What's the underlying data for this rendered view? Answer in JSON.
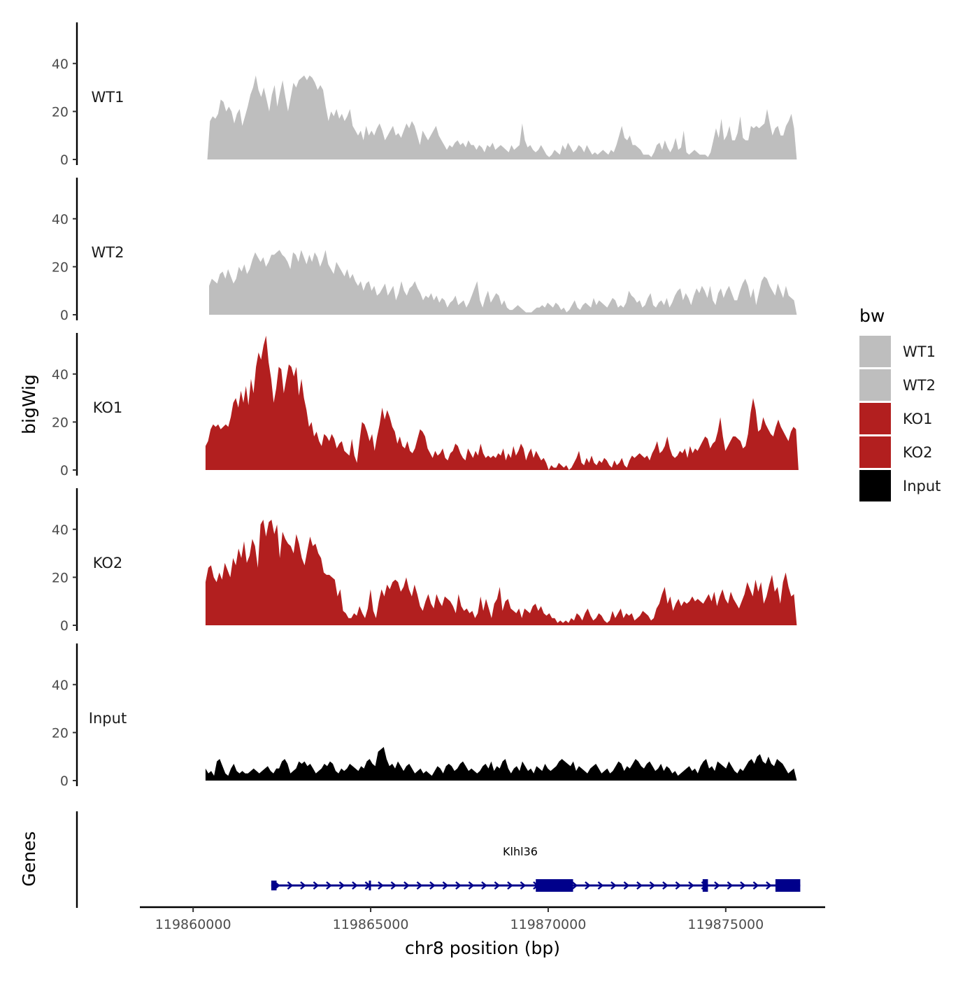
{
  "chart_data": {
    "type": "area",
    "title": "",
    "xlabel": "chr8 position (bp)",
    "ylabel": "bigWig",
    "genes_label": "Genes",
    "xlim": [
      119858500,
      119877800
    ],
    "x_ticks": [
      119860000,
      119865000,
      119870000,
      119875000
    ],
    "x_tick_labels": [
      "119860000",
      "119865000",
      "119870000",
      "119875000"
    ],
    "ylim": [
      0,
      58
    ],
    "y_ticks": [
      0,
      20,
      40
    ],
    "y_tick_labels": [
      "0",
      "20",
      "40"
    ],
    "colors": {
      "WT": "#bebebe",
      "KO": "#b21f1f",
      "Input": "#000000",
      "gene": "#00008b",
      "axis": "#000000"
    },
    "legend": {
      "title": "bw",
      "position": "right",
      "entries": [
        {
          "label": "WT1",
          "color": "#bebebe"
        },
        {
          "label": "WT2",
          "color": "#bebebe"
        },
        {
          "label": "KO1",
          "color": "#b21f1f"
        },
        {
          "label": "KO2",
          "color": "#b21f1f"
        },
        {
          "label": "Input",
          "color": "#000000"
        }
      ]
    },
    "series": [
      {
        "name": "WT1",
        "color": "#bebebe",
        "x_start": 119860400,
        "x_end": 119877000,
        "values": [
          0,
          16,
          18,
          17,
          19,
          25,
          24,
          20,
          22,
          20,
          15,
          19,
          21,
          14,
          18,
          22,
          27,
          30,
          35,
          29,
          26,
          30,
          25,
          20,
          27,
          31,
          22,
          28,
          33,
          26,
          20,
          26,
          32,
          30,
          33,
          34,
          35,
          33,
          35,
          34,
          32,
          29,
          31,
          29,
          22,
          16,
          20,
          18,
          21,
          17,
          19,
          16,
          18,
          21,
          14,
          12,
          10,
          12,
          8,
          14,
          10,
          12,
          10,
          13,
          15,
          12,
          8,
          10,
          12,
          14,
          10,
          11,
          9,
          12,
          15,
          13,
          16,
          14,
          10,
          6,
          12,
          10,
          8,
          10,
          12,
          14,
          10,
          8,
          6,
          4,
          6,
          5,
          7,
          8,
          6,
          7,
          5,
          8,
          6,
          6,
          4,
          6,
          5,
          3,
          6,
          5,
          7,
          4,
          5,
          6,
          5,
          4,
          3,
          6,
          4,
          5,
          6,
          15,
          8,
          5,
          6,
          4,
          3,
          4,
          6,
          4,
          2,
          1,
          2,
          4,
          3,
          2,
          6,
          4,
          7,
          5,
          3,
          4,
          6,
          5,
          3,
          6,
          4,
          2,
          3,
          2,
          3,
          4,
          3,
          2,
          4,
          3,
          6,
          10,
          14,
          9,
          8,
          10,
          6,
          6,
          5,
          4,
          2,
          2,
          2,
          1,
          3,
          6,
          7,
          4,
          8,
          5,
          3,
          5,
          9,
          4,
          5,
          12,
          3,
          2,
          3,
          4,
          3,
          2,
          2,
          2,
          1,
          3,
          8,
          13,
          9,
          17,
          8,
          10,
          14,
          8,
          8,
          11,
          18,
          9,
          8,
          8,
          14,
          13,
          14,
          13,
          14,
          15,
          21,
          15,
          10,
          13,
          14,
          10,
          10,
          14,
          16,
          19,
          13,
          0
        ]
      },
      {
        "name": "WT2",
        "color": "#bebebe",
        "x_start": 119860450,
        "x_end": 119877000,
        "values": [
          12,
          15,
          14,
          13,
          17,
          18,
          15,
          19,
          16,
          13,
          15,
          20,
          18,
          21,
          17,
          19,
          23,
          26,
          24,
          22,
          24,
          20,
          22,
          25,
          25,
          26,
          27,
          25,
          24,
          22,
          19,
          26,
          25,
          22,
          27,
          24,
          21,
          25,
          22,
          26,
          24,
          20,
          23,
          27,
          21,
          19,
          17,
          22,
          20,
          18,
          16,
          19,
          15,
          17,
          14,
          12,
          14,
          10,
          13,
          14,
          10,
          12,
          8,
          9,
          11,
          13,
          8,
          10,
          12,
          6,
          9,
          14,
          10,
          8,
          11,
          12,
          14,
          11,
          9,
          6,
          8,
          7,
          9,
          6,
          8,
          5,
          7,
          6,
          3,
          5,
          6,
          8,
          4,
          5,
          6,
          3,
          5,
          8,
          11,
          14,
          6,
          3,
          7,
          10,
          5,
          7,
          9,
          8,
          4,
          6,
          3,
          2,
          2,
          3,
          4,
          3,
          2,
          1,
          1,
          1,
          2,
          3,
          3,
          4,
          3,
          5,
          4,
          3,
          5,
          4,
          2,
          3,
          1,
          2,
          4,
          6,
          3,
          2,
          4,
          5,
          4,
          3,
          7,
          4,
          6,
          5,
          4,
          3,
          5,
          7,
          6,
          3,
          4,
          3,
          5,
          10,
          8,
          7,
          5,
          6,
          3,
          4,
          7,
          9,
          4,
          3,
          5,
          6,
          4,
          7,
          3,
          5,
          8,
          10,
          11,
          6,
          9,
          7,
          4,
          8,
          11,
          9,
          12,
          10,
          7,
          12,
          6,
          4,
          9,
          11,
          7,
          10,
          12,
          9,
          6,
          6,
          10,
          13,
          15,
          12,
          7,
          11,
          4,
          9,
          14,
          16,
          15,
          12,
          10,
          8,
          13,
          10,
          7,
          12,
          8,
          7,
          6,
          0
        ]
      },
      {
        "name": "KO1",
        "color": "#b21f1f",
        "x_start": 119860350,
        "x_end": 119877050,
        "values": [
          10,
          12,
          17,
          19,
          18,
          19,
          17,
          18,
          19,
          18,
          22,
          28,
          30,
          26,
          33,
          28,
          35,
          27,
          38,
          32,
          43,
          49,
          46,
          52,
          56,
          45,
          38,
          28,
          34,
          43,
          42,
          32,
          38,
          44,
          43,
          39,
          43,
          31,
          38,
          30,
          25,
          18,
          20,
          14,
          16,
          12,
          10,
          15,
          14,
          12,
          15,
          13,
          9,
          11,
          12,
          8,
          7,
          6,
          13,
          6,
          3,
          12,
          20,
          19,
          16,
          12,
          15,
          8,
          14,
          19,
          26,
          21,
          25,
          22,
          18,
          16,
          11,
          14,
          10,
          9,
          12,
          8,
          7,
          9,
          13,
          17,
          16,
          14,
          9,
          7,
          5,
          8,
          6,
          7,
          9,
          5,
          4,
          7,
          8,
          11,
          10,
          7,
          5,
          4,
          9,
          7,
          5,
          8,
          6,
          11,
          7,
          5,
          6,
          5,
          6,
          5,
          7,
          6,
          9,
          4,
          7,
          5,
          10,
          6,
          8,
          11,
          9,
          4,
          7,
          9,
          5,
          8,
          6,
          4,
          5,
          3,
          0,
          2,
          1,
          1,
          3,
          2,
          1,
          2,
          0,
          1,
          3,
          5,
          8,
          3,
          2,
          5,
          3,
          6,
          3,
          2,
          4,
          3,
          5,
          4,
          2,
          1,
          4,
          2,
          3,
          5,
          2,
          1,
          4,
          6,
          5,
          6,
          7,
          6,
          5,
          6,
          4,
          7,
          9,
          12,
          7,
          8,
          10,
          14,
          9,
          6,
          5,
          6,
          8,
          7,
          9,
          5,
          10,
          7,
          9,
          8,
          10,
          12,
          14,
          13,
          9,
          11,
          12,
          16,
          22,
          14,
          8,
          10,
          12,
          14,
          14,
          13,
          12,
          9,
          10,
          15,
          24,
          30,
          25,
          16,
          17,
          22,
          19,
          17,
          15,
          14,
          18,
          21,
          18,
          16,
          14,
          12,
          16,
          18,
          17,
          0
        ]
      },
      {
        "name": "KO2",
        "color": "#b21f1f",
        "x_start": 119860350,
        "x_end": 119877000,
        "values": [
          18,
          24,
          25,
          20,
          18,
          22,
          19,
          26,
          23,
          20,
          28,
          25,
          32,
          28,
          35,
          26,
          29,
          36,
          33,
          24,
          42,
          44,
          37,
          43,
          44,
          38,
          42,
          28,
          39,
          36,
          34,
          33,
          30,
          38,
          34,
          28,
          25,
          31,
          37,
          33,
          34,
          30,
          28,
          22,
          21,
          21,
          20,
          19,
          12,
          15,
          6,
          5,
          3,
          3,
          5,
          4,
          8,
          5,
          3,
          7,
          15,
          6,
          3,
          10,
          15,
          12,
          17,
          15,
          18,
          19,
          18,
          14,
          16,
          20,
          15,
          12,
          17,
          13,
          8,
          6,
          10,
          13,
          9,
          7,
          13,
          10,
          8,
          12,
          11,
          10,
          8,
          5,
          13,
          8,
          6,
          7,
          5,
          6,
          3,
          5,
          12,
          6,
          11,
          7,
          3,
          9,
          11,
          16,
          6,
          10,
          11,
          7,
          6,
          5,
          7,
          3,
          7,
          6,
          5,
          8,
          9,
          6,
          8,
          5,
          4,
          5,
          3,
          3,
          1,
          2,
          1,
          2,
          1,
          3,
          2,
          5,
          4,
          2,
          5,
          7,
          4,
          2,
          3,
          5,
          4,
          2,
          1,
          2,
          6,
          3,
          5,
          7,
          3,
          5,
          4,
          5,
          2,
          3,
          4,
          6,
          5,
          4,
          2,
          3,
          7,
          9,
          13,
          16,
          9,
          12,
          6,
          9,
          11,
          8,
          10,
          9,
          10,
          12,
          10,
          11,
          10,
          9,
          11,
          13,
          10,
          14,
          8,
          12,
          15,
          11,
          9,
          14,
          11,
          9,
          7,
          10,
          13,
          18,
          15,
          12,
          19,
          14,
          18,
          9,
          12,
          17,
          21,
          14,
          16,
          9,
          18,
          22,
          16,
          12,
          13,
          0
        ]
      },
      {
        "name": "Input",
        "color": "#000000",
        "x_start": 119860350,
        "x_end": 119877000,
        "values": [
          5,
          3,
          4,
          2,
          8,
          9,
          6,
          3,
          2,
          5,
          7,
          4,
          3,
          4,
          3,
          3,
          4,
          5,
          4,
          3,
          4,
          5,
          6,
          4,
          3,
          5,
          5,
          8,
          9,
          7,
          3,
          4,
          5,
          8,
          7,
          8,
          6,
          7,
          5,
          3,
          4,
          5,
          7,
          6,
          8,
          7,
          4,
          3,
          5,
          4,
          5,
          7,
          6,
          5,
          4,
          6,
          5,
          8,
          9,
          7,
          6,
          12,
          13,
          14,
          9,
          6,
          7,
          5,
          8,
          6,
          4,
          6,
          7,
          5,
          3,
          4,
          5,
          3,
          4,
          3,
          2,
          4,
          6,
          5,
          3,
          6,
          7,
          6,
          4,
          5,
          7,
          8,
          6,
          4,
          5,
          4,
          3,
          4,
          6,
          7,
          5,
          8,
          4,
          6,
          5,
          8,
          9,
          5,
          3,
          5,
          6,
          4,
          8,
          6,
          4,
          5,
          3,
          6,
          5,
          4,
          7,
          5,
          4,
          5,
          6,
          8,
          9,
          8,
          7,
          6,
          8,
          4,
          6,
          5,
          4,
          3,
          5,
          6,
          7,
          5,
          3,
          4,
          5,
          3,
          4,
          6,
          8,
          7,
          4,
          6,
          5,
          7,
          9,
          8,
          6,
          5,
          7,
          8,
          6,
          4,
          5,
          7,
          4,
          6,
          5,
          3,
          4,
          2,
          3,
          4,
          5,
          6,
          4,
          5,
          3,
          6,
          8,
          9,
          5,
          6,
          4,
          8,
          7,
          6,
          5,
          8,
          6,
          4,
          3,
          5,
          4,
          6,
          8,
          9,
          7,
          10,
          11,
          8,
          7,
          10,
          7,
          6,
          9,
          8,
          7,
          5,
          3,
          4,
          5,
          0
        ]
      }
    ],
    "gene": {
      "name": "Klhl36",
      "strand": "+",
      "start": 119862200,
      "end": 119877100,
      "exons": [
        {
          "start": 119862200,
          "end": 119862350,
          "kind": "utr"
        },
        {
          "start": 119864950,
          "end": 119865000,
          "kind": "utr"
        },
        {
          "start": 119869650,
          "end": 119870700,
          "kind": "cds"
        },
        {
          "start": 119874350,
          "end": 119874500,
          "kind": "cds"
        },
        {
          "start": 119876400,
          "end": 119877100,
          "kind": "cds"
        }
      ]
    }
  }
}
